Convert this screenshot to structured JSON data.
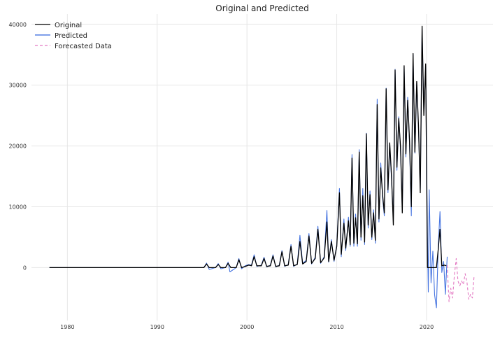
{
  "chart_data": {
    "type": "line",
    "title": "Original and Predicted",
    "xlabel": "",
    "ylabel": "",
    "xlim": [
      1976.0,
      2027.4
    ],
    "ylim": [
      -8700,
      41700
    ],
    "grid": true,
    "legend_position": "top-left",
    "x_ticks": [
      1980,
      1990,
      2000,
      2010,
      2020
    ],
    "x_tick_labels": [
      "1980",
      "1990",
      "2000",
      "2010",
      "2020"
    ],
    "y_ticks": [
      0,
      10000,
      20000,
      30000,
      40000
    ],
    "y_tick_labels": [
      "0",
      "10000",
      "20000",
      "30000",
      "40000"
    ],
    "series": [
      {
        "name": "Original",
        "color": "#000000",
        "dash": "solid",
        "points": [
          [
            1978.0,
            0
          ],
          [
            1995.2,
            0
          ],
          [
            1995.5,
            600
          ],
          [
            1995.8,
            0
          ],
          [
            1996.5,
            0
          ],
          [
            1996.8,
            500
          ],
          [
            1997.1,
            0
          ],
          [
            1997.6,
            0
          ],
          [
            1997.9,
            700
          ],
          [
            1998.2,
            0
          ],
          [
            1998.8,
            0
          ],
          [
            1999.1,
            1300
          ],
          [
            1999.4,
            0
          ],
          [
            1999.8,
            200
          ],
          [
            2000.2,
            400
          ],
          [
            2000.5,
            300
          ],
          [
            2000.8,
            1800
          ],
          [
            2001.1,
            300
          ],
          [
            2001.6,
            300
          ],
          [
            2001.9,
            1500
          ],
          [
            2002.2,
            200
          ],
          [
            2002.6,
            300
          ],
          [
            2002.9,
            1900
          ],
          [
            2003.2,
            200
          ],
          [
            2003.6,
            300
          ],
          [
            2003.9,
            2600
          ],
          [
            2004.2,
            300
          ],
          [
            2004.6,
            400
          ],
          [
            2004.9,
            3500
          ],
          [
            2005.2,
            300
          ],
          [
            2005.6,
            500
          ],
          [
            2005.9,
            4300
          ],
          [
            2006.2,
            600
          ],
          [
            2006.6,
            1000
          ],
          [
            2006.9,
            5200
          ],
          [
            2007.2,
            700
          ],
          [
            2007.6,
            1500
          ],
          [
            2007.9,
            6300
          ],
          [
            2008.2,
            800
          ],
          [
            2008.6,
            1600
          ],
          [
            2008.9,
            7500
          ],
          [
            2009.1,
            1000
          ],
          [
            2009.4,
            4300
          ],
          [
            2009.7,
            1200
          ],
          [
            2010.0,
            3500
          ],
          [
            2010.3,
            12300
          ],
          [
            2010.5,
            2200
          ],
          [
            2010.8,
            7300
          ],
          [
            2011.0,
            3200
          ],
          [
            2011.3,
            7700
          ],
          [
            2011.5,
            3800
          ],
          [
            2011.7,
            18000
          ],
          [
            2011.9,
            4000
          ],
          [
            2012.1,
            8200
          ],
          [
            2012.3,
            3900
          ],
          [
            2012.5,
            19000
          ],
          [
            2012.7,
            5000
          ],
          [
            2012.9,
            11800
          ],
          [
            2013.1,
            4200
          ],
          [
            2013.3,
            22000
          ],
          [
            2013.5,
            7000
          ],
          [
            2013.7,
            12000
          ],
          [
            2013.9,
            5000
          ],
          [
            2014.1,
            9000
          ],
          [
            2014.3,
            4500
          ],
          [
            2014.5,
            26800
          ],
          [
            2014.7,
            8000
          ],
          [
            2014.9,
            16400
          ],
          [
            2015.1,
            12000
          ],
          [
            2015.3,
            9000
          ],
          [
            2015.5,
            29400
          ],
          [
            2015.7,
            12800
          ],
          [
            2015.9,
            20500
          ],
          [
            2016.1,
            15000
          ],
          [
            2016.3,
            7000
          ],
          [
            2016.5,
            32500
          ],
          [
            2016.7,
            16500
          ],
          [
            2016.9,
            24500
          ],
          [
            2017.1,
            20000
          ],
          [
            2017.3,
            9000
          ],
          [
            2017.5,
            33200
          ],
          [
            2017.7,
            18700
          ],
          [
            2017.9,
            27500
          ],
          [
            2018.1,
            21000
          ],
          [
            2018.3,
            10000
          ],
          [
            2018.5,
            35200
          ],
          [
            2018.7,
            19000
          ],
          [
            2018.9,
            30600
          ],
          [
            2019.1,
            23500
          ],
          [
            2019.3,
            12300
          ],
          [
            2019.5,
            39700
          ],
          [
            2019.7,
            25000
          ],
          [
            2019.9,
            33500
          ],
          [
            2020.1,
            0
          ],
          [
            2021.1,
            0
          ],
          [
            2021.3,
            3000
          ],
          [
            2021.5,
            6300
          ],
          [
            2021.7,
            300
          ],
          [
            2022.0,
            400
          ],
          [
            2022.2,
            300
          ]
        ]
      },
      {
        "name": "Predicted",
        "color": "#3366dd",
        "dash": "solid",
        "points": [
          [
            1978.0,
            0
          ],
          [
            1995.2,
            0
          ],
          [
            1995.5,
            750
          ],
          [
            1995.8,
            -300
          ],
          [
            1996.5,
            0
          ],
          [
            1996.8,
            650
          ],
          [
            1997.1,
            -200
          ],
          [
            1997.6,
            0
          ],
          [
            1997.9,
            900
          ],
          [
            1998.1,
            -700
          ],
          [
            1998.8,
            0
          ],
          [
            1999.1,
            1500
          ],
          [
            1999.4,
            -200
          ],
          [
            1999.8,
            300
          ],
          [
            2000.2,
            500
          ],
          [
            2000.5,
            400
          ],
          [
            2000.8,
            2100
          ],
          [
            2001.1,
            200
          ],
          [
            2001.6,
            400
          ],
          [
            2001.9,
            1700
          ],
          [
            2002.2,
            100
          ],
          [
            2002.6,
            400
          ],
          [
            2002.9,
            2100
          ],
          [
            2003.2,
            100
          ],
          [
            2003.6,
            400
          ],
          [
            2003.9,
            2800
          ],
          [
            2004.2,
            200
          ],
          [
            2004.6,
            500
          ],
          [
            2004.9,
            3800
          ],
          [
            2005.2,
            200
          ],
          [
            2005.6,
            600
          ],
          [
            2005.9,
            5300
          ],
          [
            2006.2,
            700
          ],
          [
            2006.6,
            1200
          ],
          [
            2006.9,
            5600
          ],
          [
            2007.2,
            600
          ],
          [
            2007.6,
            1700
          ],
          [
            2007.9,
            6800
          ],
          [
            2008.2,
            700
          ],
          [
            2008.6,
            1800
          ],
          [
            2008.9,
            9400
          ],
          [
            2009.1,
            900
          ],
          [
            2009.4,
            4600
          ],
          [
            2009.7,
            1000
          ],
          [
            2010.0,
            3800
          ],
          [
            2010.3,
            13000
          ],
          [
            2010.5,
            1800
          ],
          [
            2010.8,
            8000
          ],
          [
            2011.0,
            2800
          ],
          [
            2011.3,
            8300
          ],
          [
            2011.5,
            3500
          ],
          [
            2011.7,
            18600
          ],
          [
            2011.9,
            3500
          ],
          [
            2012.1,
            8800
          ],
          [
            2012.3,
            3500
          ],
          [
            2012.5,
            19400
          ],
          [
            2012.7,
            4500
          ],
          [
            2012.9,
            13000
          ],
          [
            2013.1,
            3800
          ],
          [
            2013.3,
            22100
          ],
          [
            2013.5,
            6500
          ],
          [
            2013.7,
            12600
          ],
          [
            2013.9,
            4600
          ],
          [
            2014.1,
            9500
          ],
          [
            2014.3,
            4000
          ],
          [
            2014.5,
            27700
          ],
          [
            2014.7,
            7500
          ],
          [
            2014.9,
            17200
          ],
          [
            2015.1,
            11500
          ],
          [
            2015.3,
            8500
          ],
          [
            2015.5,
            29500
          ],
          [
            2015.7,
            12300
          ],
          [
            2015.9,
            20300
          ],
          [
            2016.1,
            14500
          ],
          [
            2016.3,
            7800
          ],
          [
            2016.5,
            32600
          ],
          [
            2016.7,
            16000
          ],
          [
            2016.9,
            24800
          ],
          [
            2017.1,
            19500
          ],
          [
            2017.3,
            9500
          ],
          [
            2017.5,
            33000
          ],
          [
            2017.7,
            18200
          ],
          [
            2017.9,
            28000
          ],
          [
            2018.1,
            20500
          ],
          [
            2018.3,
            8500
          ],
          [
            2018.5,
            35000
          ],
          [
            2018.7,
            18800
          ],
          [
            2018.9,
            30200
          ],
          [
            2019.1,
            23000
          ],
          [
            2019.3,
            13000
          ],
          [
            2019.5,
            39100
          ],
          [
            2019.7,
            25500
          ],
          [
            2019.9,
            33000
          ],
          [
            2020.1,
            5000
          ],
          [
            2020.2,
            -4000
          ],
          [
            2020.3,
            12800
          ],
          [
            2020.5,
            -2500
          ],
          [
            2020.7,
            2700
          ],
          [
            2020.9,
            -4500
          ],
          [
            2021.1,
            -6600
          ],
          [
            2021.3,
            3500
          ],
          [
            2021.5,
            9200
          ],
          [
            2021.7,
            -800
          ],
          [
            2021.9,
            1000
          ],
          [
            2022.1,
            -4400
          ],
          [
            2022.3,
            1800
          ]
        ]
      },
      {
        "name": "Forecasted Data",
        "color": "#e377c2",
        "dash": "dashed",
        "points": [
          [
            2022.3,
            400
          ],
          [
            2022.5,
            -5600
          ],
          [
            2022.7,
            -3400
          ],
          [
            2022.9,
            -5000
          ],
          [
            2023.1,
            -1200
          ],
          [
            2023.3,
            1500
          ],
          [
            2023.5,
            -2200
          ],
          [
            2023.7,
            -3000
          ],
          [
            2023.9,
            -2200
          ],
          [
            2024.1,
            -2800
          ],
          [
            2024.3,
            -1000
          ],
          [
            2024.5,
            -2400
          ],
          [
            2024.7,
            -5200
          ],
          [
            2024.9,
            -4400
          ],
          [
            2025.1,
            -5000
          ],
          [
            2025.3,
            -1300
          ]
        ]
      }
    ]
  }
}
